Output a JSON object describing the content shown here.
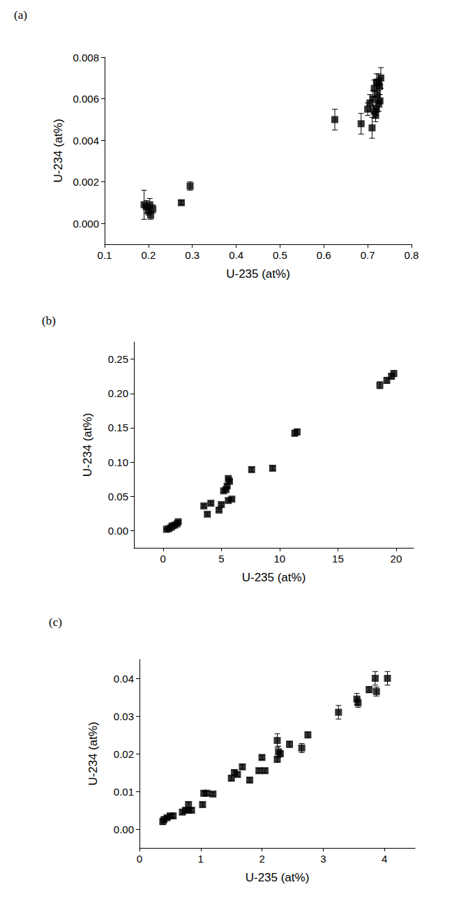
{
  "chart_data": [
    {
      "type": "scatter",
      "title": "(a)",
      "x_label": "U-235 (at%)",
      "y_label": "U-234 (at%)",
      "color": "#000000",
      "marker": "square",
      "xlim": [
        0.1,
        0.8
      ],
      "xticks": [
        0.1,
        0.2,
        0.3,
        0.4,
        0.5,
        0.6,
        0.7,
        0.8
      ],
      "ylim": [
        -0.001,
        0.008
      ],
      "yticks": [
        {
          "value": 0,
          "label": "0.000"
        },
        0.002,
        0.004,
        0.006,
        0.008
      ],
      "x": [
        0.19,
        0.195,
        0.2,
        0.203,
        0.205,
        0.21,
        0.275,
        0.295,
        0.625,
        0.685,
        0.7,
        0.71,
        0.705,
        0.712,
        0.715,
        0.718,
        0.72,
        0.722,
        0.725,
        0.727,
        0.73,
        0.715,
        0.72,
        0.725,
        0.728
      ],
      "values": [
        0.0009,
        0.0008,
        0.0006,
        0.0009,
        0.0004,
        0.0007,
        0.001,
        0.0018,
        0.005,
        0.0048,
        0.0055,
        0.0046,
        0.0058,
        0.006,
        0.0065,
        0.0052,
        0.0055,
        0.0062,
        0.0068,
        0.0066,
        0.007,
        0.0054,
        0.0068,
        0.0058,
        0.0059
      ],
      "errors": [
        0.0007,
        0.0003,
        0.0002,
        0.0003,
        0.0002,
        0.0002,
        0.0001,
        0.0002,
        0.0005,
        0.0005,
        0.0003,
        0.0005,
        0.0004,
        0.0004,
        0.0004,
        0.0003,
        0.0003,
        0.0004,
        0.0004,
        0.0004,
        0.0005,
        0.0003,
        0.0004,
        0.0004,
        0.0003
      ]
    },
    {
      "type": "scatter",
      "title": "(b)",
      "x_label": "U-235 (at%)",
      "y_label": "U-234 (at%)",
      "color": "#000000",
      "marker": "square",
      "xlim": [
        -2.5,
        21.5
      ],
      "xticks": [
        0,
        5,
        10,
        15,
        20
      ],
      "ylim": [
        -0.025,
        0.275
      ],
      "yticks": [
        {
          "value": 0,
          "label": "0.00"
        },
        0.05,
        {
          "value": 0.1,
          "label": "0.10"
        },
        0.15,
        {
          "value": 0.2,
          "label": "0.20"
        },
        0.25
      ],
      "x": [
        0.3,
        0.5,
        0.7,
        0.8,
        1.0,
        1.2,
        1.3,
        3.5,
        3.8,
        4.1,
        4.8,
        5.0,
        5.2,
        5.4,
        5.5,
        5.6,
        5.7,
        5.6,
        5.9,
        7.6,
        9.4,
        11.3,
        11.5,
        18.6,
        19.2,
        19.6,
        19.8
      ],
      "values": [
        0.002,
        0.003,
        0.005,
        0.007,
        0.008,
        0.01,
        0.013,
        0.036,
        0.024,
        0.04,
        0.03,
        0.038,
        0.058,
        0.06,
        0.065,
        0.076,
        0.072,
        0.044,
        0.046,
        0.089,
        0.091,
        0.142,
        0.144,
        0.212,
        0.219,
        0.225,
        0.229
      ],
      "errors": [
        0.001,
        0.001,
        0.001,
        0.001,
        0.001,
        0.001,
        0.002,
        0.002,
        0.002,
        0.002,
        0.002,
        0.002,
        0.002,
        0.002,
        0.002,
        0.002,
        0.002,
        0.002,
        0.002,
        0.003,
        0.003,
        0.004,
        0.004,
        0.005,
        0.004,
        0.004,
        0.004
      ]
    },
    {
      "type": "scatter",
      "title": "(c)",
      "x_label": "U-235 (at%)",
      "y_label": "U-234 (at%)",
      "color": "#000000",
      "marker": "square",
      "xlim": [
        0,
        4.5
      ],
      "xticks": [
        0,
        1,
        2,
        3,
        4
      ],
      "ylim": [
        -0.005,
        0.045
      ],
      "yticks": [
        {
          "value": 0,
          "label": "0.00"
        },
        0.01,
        0.02,
        0.03,
        0.04
      ],
      "x": [
        0.38,
        0.4,
        0.45,
        0.5,
        0.55,
        0.7,
        0.75,
        0.8,
        0.8,
        0.85,
        1.03,
        1.05,
        1.1,
        1.2,
        1.5,
        1.55,
        1.6,
        1.68,
        1.8,
        1.95,
        2.0,
        2.05,
        2.25,
        2.25,
        2.27,
        2.3,
        2.45,
        2.65,
        2.75,
        3.25,
        3.55,
        3.57,
        3.75,
        3.85,
        3.87,
        4.05
      ],
      "values": [
        0.002,
        0.0025,
        0.003,
        0.0035,
        0.0035,
        0.0045,
        0.005,
        0.0065,
        0.005,
        0.005,
        0.0065,
        0.0095,
        0.0095,
        0.0093,
        0.0135,
        0.015,
        0.0145,
        0.0165,
        0.013,
        0.0155,
        0.019,
        0.0155,
        0.0235,
        0.0185,
        0.0205,
        0.02,
        0.0225,
        0.0215,
        0.025,
        0.031,
        0.0345,
        0.0335,
        0.037,
        0.04,
        0.0365,
        0.04
      ],
      "errors": [
        0.0008,
        0.0008,
        0.0005,
        0.0005,
        0.0005,
        0.0005,
        0.0005,
        0.0007,
        0.0005,
        0.0005,
        0.0006,
        0.0006,
        0.0005,
        0.0005,
        0.0006,
        0.0006,
        0.0006,
        0.0006,
        0.0006,
        0.0006,
        0.0006,
        0.0006,
        0.0018,
        0.0008,
        0.0015,
        0.0008,
        0.0008,
        0.0012,
        0.0008,
        0.0018,
        0.0015,
        0.0012,
        0.0008,
        0.0018,
        0.0012,
        0.0018
      ]
    }
  ]
}
